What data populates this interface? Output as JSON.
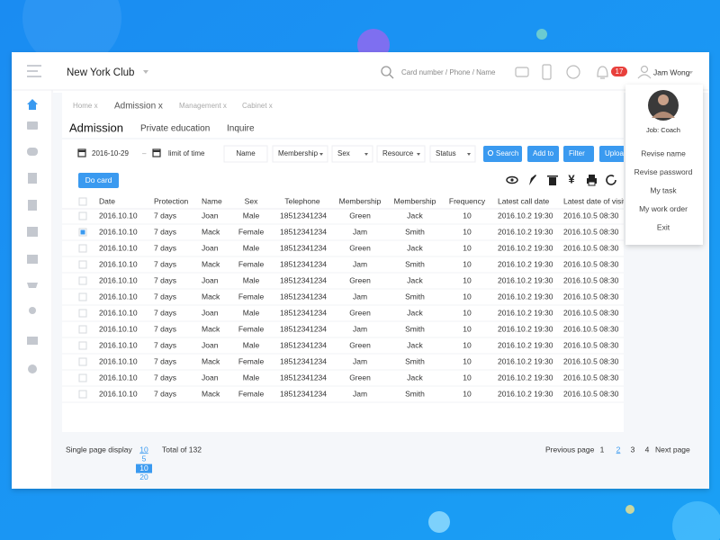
{
  "header": {
    "brand": "New York  Club",
    "search_placeholder": "Card number / Phone / Name",
    "notification_count": "17",
    "user": "Jam Wong"
  },
  "user_menu": {
    "role": "Job: Coach",
    "items": [
      "Revise name",
      "Revise password",
      "My task",
      "My work order",
      "Exit"
    ]
  },
  "breadcrumbs": [
    "Home x",
    "Admission x",
    "Management x",
    "Cabinet x"
  ],
  "tabs": [
    "Admission",
    "Private education",
    "Inquire"
  ],
  "filters": {
    "date": "2016-10-29",
    "separator": "–",
    "limit": "limit of time",
    "fields": [
      "Name",
      "Membership",
      "Sex",
      "Resource",
      "Status"
    ]
  },
  "buttons": [
    "Search",
    "Add to",
    "Filter",
    "Upload"
  ],
  "do_card": "Do card",
  "toolbar_currency": "¥",
  "table": {
    "columns": [
      "Date",
      "Protection",
      "Name",
      "Sex",
      "Telephone",
      "Membership",
      "Membership",
      "Frequency",
      "Latest call date",
      "Latest date of visit"
    ],
    "rows": [
      [
        "2016.10.10",
        "7 days",
        "Joan",
        "Male",
        "18512341234",
        "Green",
        "Jack",
        "10",
        "2016.10.2 19:30",
        "2016.10.5 08:30"
      ],
      [
        "2016.10.10",
        "7 days",
        "Mack",
        "Female",
        "18512341234",
        "Jam",
        "Smith",
        "10",
        "2016.10.2 19:30",
        "2016.10.5 08:30"
      ],
      [
        "2016.10.10",
        "7 days",
        "Joan",
        "Male",
        "18512341234",
        "Green",
        "Jack",
        "10",
        "2016.10.2 19:30",
        "2016.10.5 08:30"
      ],
      [
        "2016.10.10",
        "7 days",
        "Mack",
        "Female",
        "18512341234",
        "Jam",
        "Smith",
        "10",
        "2016.10.2 19:30",
        "2016.10.5 08:30"
      ],
      [
        "2016.10.10",
        "7 days",
        "Joan",
        "Male",
        "18512341234",
        "Green",
        "Jack",
        "10",
        "2016.10.2 19:30",
        "2016.10.5 08:30"
      ],
      [
        "2016.10.10",
        "7 days",
        "Mack",
        "Female",
        "18512341234",
        "Jam",
        "Smith",
        "10",
        "2016.10.2 19:30",
        "2016.10.5 08:30"
      ],
      [
        "2016.10.10",
        "7 days",
        "Joan",
        "Male",
        "18512341234",
        "Green",
        "Jack",
        "10",
        "2016.10.2 19:30",
        "2016.10.5 08:30"
      ],
      [
        "2016.10.10",
        "7 days",
        "Mack",
        "Female",
        "18512341234",
        "Jam",
        "Smith",
        "10",
        "2016.10.2 19:30",
        "2016.10.5 08:30"
      ],
      [
        "2016.10.10",
        "7 days",
        "Joan",
        "Male",
        "18512341234",
        "Green",
        "Jack",
        "10",
        "2016.10.2 19:30",
        "2016.10.5 08:30"
      ],
      [
        "2016.10.10",
        "7 days",
        "Mack",
        "Female",
        "18512341234",
        "Jam",
        "Smith",
        "10",
        "2016.10.2 19:30",
        "2016.10.5 08:30"
      ],
      [
        "2016.10.10",
        "7 days",
        "Joan",
        "Male",
        "18512341234",
        "Green",
        "Jack",
        "10",
        "2016.10.2 19:30",
        "2016.10.5 08:30"
      ],
      [
        "2016.10.10",
        "7 days",
        "Mack",
        "Female",
        "18512341234",
        "Jam",
        "Smith",
        "10",
        "2016.10.2 19:30",
        "2016.10.5 08:30"
      ]
    ]
  },
  "pagination": {
    "page_size_label": "Single page display",
    "page_sizes": [
      "10",
      "5",
      "10",
      "20"
    ],
    "total": "Total of 132",
    "previous": "Previous page",
    "pages": [
      "1",
      "2",
      "3",
      "4"
    ],
    "next": "Next page"
  }
}
